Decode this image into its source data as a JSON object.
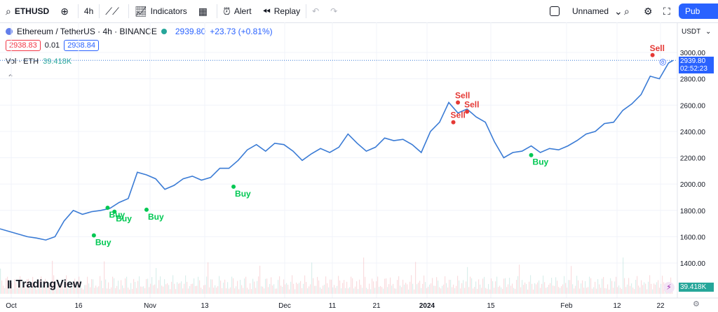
{
  "toolbar": {
    "symbol": "ETHUSD",
    "interval": "4h",
    "indicators_label": "Indicators",
    "alert_label": "Alert",
    "replay_label": "Replay",
    "layout_name": "Unnamed",
    "publish_label": "Pub"
  },
  "legend": {
    "title": "Ethereum / TetherUS · 4h · BINANCE",
    "price": "2939.80",
    "change": "+23.73 (+0.81%)",
    "bid": "2938.83",
    "spread": "0.01",
    "ask": "2938.84",
    "vol_label": "Vol · ETH",
    "vol_value": "39.418K"
  },
  "price_scale": {
    "currency": "USDT",
    "last_price": "2939.80",
    "countdown": "02:52:23",
    "vol_tag": "39.418K"
  },
  "brand": "TradingView",
  "colors": {
    "line": "#3a7bd5",
    "buy": "#00c853",
    "sell": "#e53935",
    "accent": "#2962ff"
  },
  "chart_data": {
    "type": "line",
    "title": "Ethereum / TetherUS · 4h · BINANCE",
    "xlabel": "",
    "ylabel": "",
    "ylim": [
      1300,
      3100
    ],
    "y_ticks": [
      1400,
      1600,
      1800,
      2000,
      2200,
      2400,
      2600,
      2800,
      3000
    ],
    "x_ticks": [
      "Oct",
      "16",
      "Nov",
      "13",
      "Dec",
      "11",
      "21",
      "2024",
      "15",
      "Feb",
      "12",
      "22"
    ],
    "x": [
      0,
      2,
      4,
      6,
      8,
      10,
      12,
      14,
      16,
      18,
      20,
      22,
      24,
      26,
      28,
      30,
      32,
      34,
      36,
      38,
      40,
      42,
      44,
      46,
      48,
      50,
      52,
      54,
      56,
      58,
      60,
      62,
      64,
      66,
      68,
      70,
      72,
      74,
      76,
      78,
      80,
      82,
      84,
      86,
      88,
      90,
      92,
      94,
      96,
      98,
      100,
      102,
      104,
      106,
      108,
      110,
      112,
      114,
      116,
      118,
      120,
      122,
      124,
      126,
      128,
      130,
      132,
      134,
      136,
      138,
      140,
      142,
      144,
      146,
      147
    ],
    "series": [
      {
        "name": "",
        "values": [
          1660,
          1640,
          1620,
          1600,
          1590,
          1575,
          1600,
          1720,
          1800,
          1770,
          1790,
          1800,
          1815,
          1860,
          1890,
          2090,
          2070,
          2040,
          1960,
          1990,
          2040,
          2060,
          2030,
          2050,
          2120,
          2120,
          2180,
          2260,
          2300,
          2250,
          2310,
          2300,
          2250,
          2180,
          2230,
          2270,
          2240,
          2280,
          2380,
          2310,
          2250,
          2280,
          2350,
          2330,
          2340,
          2300,
          2240,
          2400,
          2470,
          2620,
          2540,
          2570,
          2510,
          2470,
          2320,
          2200,
          2240,
          2250,
          2290,
          2240,
          2270,
          2260,
          2290,
          2330,
          2380,
          2400,
          2460,
          2470,
          2560,
          2610,
          2680,
          2820,
          2800,
          2920,
          2940
        ]
      }
    ],
    "signals": [
      {
        "label": "Buy",
        "type": "buy",
        "x": 20.5,
        "y": 1610
      },
      {
        "label": "Buy",
        "type": "buy",
        "x": 23.5,
        "y": 1820
      },
      {
        "label": "Buy",
        "type": "buy",
        "x": 25,
        "y": 1790
      },
      {
        "label": "Buy",
        "type": "buy",
        "x": 32,
        "y": 1805
      },
      {
        "label": "Buy",
        "type": "buy",
        "x": 51,
        "y": 1980
      },
      {
        "label": "Sell",
        "type": "sell",
        "x": 99,
        "y": 2470
      },
      {
        "label": "Sell",
        "type": "sell",
        "x": 100,
        "y": 2620
      },
      {
        "label": "Sell",
        "type": "sell",
        "x": 102,
        "y": 2550
      },
      {
        "label": "Buy",
        "type": "buy",
        "x": 116,
        "y": 2220
      },
      {
        "label": "Sell",
        "type": "sell",
        "x": 142.5,
        "y": 2980
      }
    ]
  }
}
